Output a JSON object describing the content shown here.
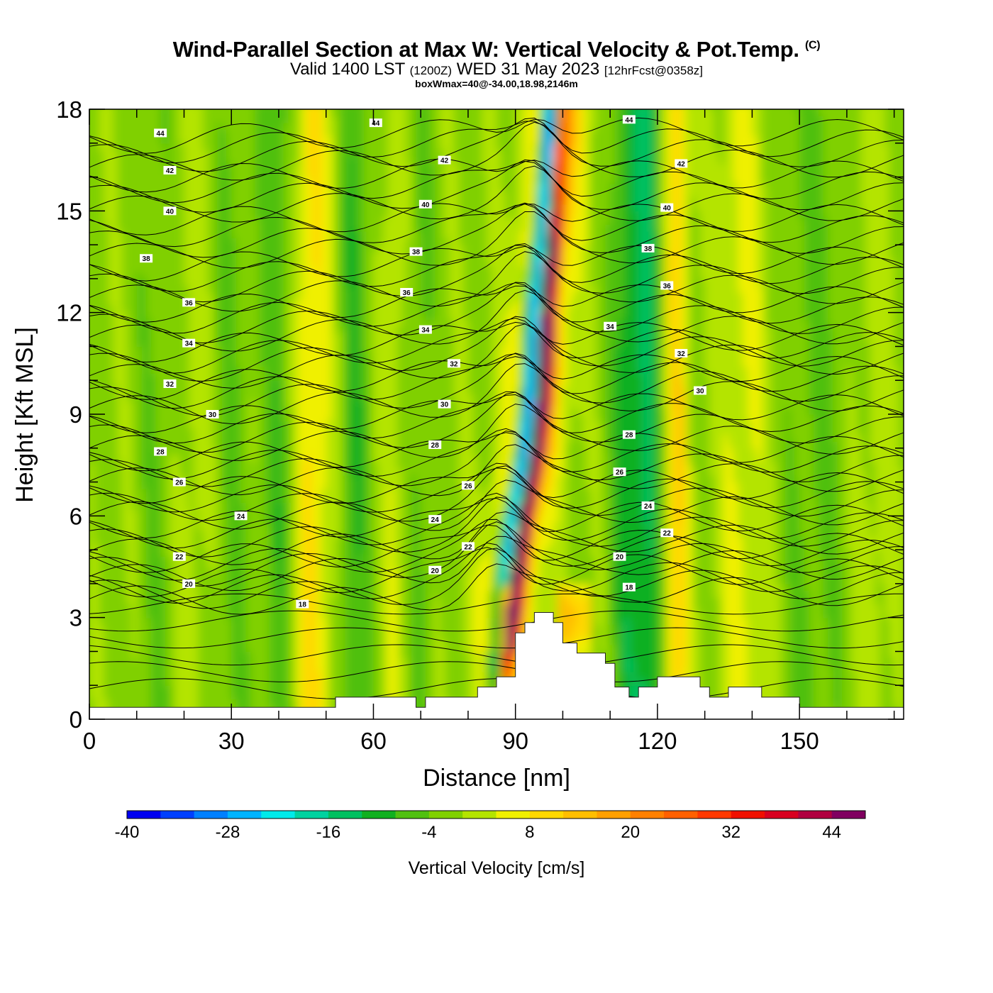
{
  "header": {
    "title": "Wind-Parallel Section at Max W: Vertical Velocity & Pot.Temp.",
    "copyright": "(C)",
    "valid_prefix": "Valid 1400 LST",
    "valid_z": "(1200Z)",
    "valid_day": "WED 31 May 2023",
    "forecast": "[12hrFcst@0358z]",
    "boxline": "boxWmax=40@-34.00,18.98,2146m"
  },
  "chart_data": {
    "type": "heatmap",
    "title": "Wind-Parallel Section at Max W: Vertical Velocity & Pot.Temp.",
    "xlabel": "Distance [nm]",
    "ylabel": "Height [Kft MSL]",
    "xlim": [
      0,
      172
    ],
    "ylim": [
      0,
      18
    ],
    "xticks": [
      0,
      30,
      60,
      90,
      120,
      150
    ],
    "yticks": [
      0,
      3,
      6,
      9,
      12,
      15,
      18
    ],
    "colorbar": {
      "title": "Vertical Velocity [cm/s]",
      "levels": [
        -40,
        -36,
        -32,
        -28,
        -24,
        -20,
        -16,
        -12,
        -8,
        -4,
        0,
        4,
        8,
        12,
        16,
        20,
        24,
        28,
        32,
        36,
        40,
        44,
        48
      ],
      "tick_labels": [
        -40,
        -28,
        -16,
        -4,
        8,
        20,
        32,
        44
      ],
      "colors": [
        "#0000f0",
        "#0040ff",
        "#0080ff",
        "#00b4ff",
        "#00eaea",
        "#00d2a0",
        "#00c060",
        "#10b020",
        "#50c010",
        "#80d000",
        "#b4e400",
        "#f0f000",
        "#ffd800",
        "#ffbe00",
        "#ffa000",
        "#ff8000",
        "#ff6000",
        "#ff3800",
        "#f01000",
        "#d80020",
        "#b00040",
        "#800060"
      ]
    },
    "theta_labels": [
      {
        "x": 15,
        "y": 17.3,
        "v": "44"
      },
      {
        "x": 60.5,
        "y": 17.6,
        "v": "44"
      },
      {
        "x": 114,
        "y": 17.7,
        "v": "44"
      },
      {
        "x": 17,
        "y": 16.2,
        "v": "42"
      },
      {
        "x": 75,
        "y": 16.5,
        "v": "42"
      },
      {
        "x": 125,
        "y": 16.4,
        "v": "42"
      },
      {
        "x": 17,
        "y": 15.0,
        "v": "40"
      },
      {
        "x": 71,
        "y": 15.2,
        "v": "40"
      },
      {
        "x": 122,
        "y": 15.1,
        "v": "40"
      },
      {
        "x": 12,
        "y": 13.6,
        "v": "38"
      },
      {
        "x": 69,
        "y": 13.8,
        "v": "38"
      },
      {
        "x": 118,
        "y": 13.9,
        "v": "38"
      },
      {
        "x": 21,
        "y": 12.3,
        "v": "36"
      },
      {
        "x": 67,
        "y": 12.6,
        "v": "36"
      },
      {
        "x": 122,
        "y": 12.8,
        "v": "36"
      },
      {
        "x": 21,
        "y": 11.1,
        "v": "34"
      },
      {
        "x": 71,
        "y": 11.5,
        "v": "34"
      },
      {
        "x": 110,
        "y": 11.6,
        "v": "34"
      },
      {
        "x": 17,
        "y": 9.9,
        "v": "32"
      },
      {
        "x": 77,
        "y": 10.5,
        "v": "32"
      },
      {
        "x": 125,
        "y": 10.8,
        "v": "32"
      },
      {
        "x": 26,
        "y": 9.0,
        "v": "30"
      },
      {
        "x": 75,
        "y": 9.3,
        "v": "30"
      },
      {
        "x": 129,
        "y": 9.7,
        "v": "30"
      },
      {
        "x": 15,
        "y": 7.9,
        "v": "28"
      },
      {
        "x": 73,
        "y": 8.1,
        "v": "28"
      },
      {
        "x": 114,
        "y": 8.4,
        "v": "28"
      },
      {
        "x": 19,
        "y": 7.0,
        "v": "26"
      },
      {
        "x": 80,
        "y": 6.9,
        "v": "26"
      },
      {
        "x": 112,
        "y": 7.3,
        "v": "26"
      },
      {
        "x": 32,
        "y": 6.0,
        "v": "24"
      },
      {
        "x": 73,
        "y": 5.9,
        "v": "24"
      },
      {
        "x": 118,
        "y": 6.3,
        "v": "24"
      },
      {
        "x": 19,
        "y": 4.8,
        "v": "22"
      },
      {
        "x": 80,
        "y": 5.1,
        "v": "22"
      },
      {
        "x": 122,
        "y": 5.5,
        "v": "22"
      },
      {
        "x": 21,
        "y": 4.0,
        "v": "20"
      },
      {
        "x": 73,
        "y": 4.4,
        "v": "20"
      },
      {
        "x": 112,
        "y": 4.8,
        "v": "20"
      },
      {
        "x": 45,
        "y": 3.4,
        "v": "18"
      },
      {
        "x": 114,
        "y": 3.9,
        "v": "18"
      }
    ],
    "terrain": [
      [
        0,
        0.35
      ],
      [
        52,
        0.35
      ],
      [
        52,
        0.65
      ],
      [
        69,
        0.65
      ],
      [
        69,
        0.35
      ],
      [
        71,
        0.35
      ],
      [
        71,
        0.65
      ],
      [
        82,
        0.65
      ],
      [
        82,
        0.95
      ],
      [
        86,
        0.95
      ],
      [
        86,
        1.25
      ],
      [
        90,
        1.25
      ],
      [
        90,
        2.55
      ],
      [
        92,
        2.55
      ],
      [
        92,
        2.85
      ],
      [
        94,
        2.85
      ],
      [
        94,
        3.15
      ],
      [
        98,
        3.15
      ],
      [
        98,
        2.85
      ],
      [
        100,
        2.85
      ],
      [
        100,
        2.25
      ],
      [
        103,
        2.25
      ],
      [
        103,
        1.95
      ],
      [
        109,
        1.95
      ],
      [
        109,
        1.65
      ],
      [
        111,
        1.65
      ],
      [
        111,
        0.95
      ],
      [
        114,
        0.95
      ],
      [
        114,
        0.65
      ],
      [
        116,
        0.65
      ],
      [
        116,
        0.95
      ],
      [
        120,
        0.95
      ],
      [
        120,
        1.25
      ],
      [
        129,
        1.25
      ],
      [
        129,
        0.95
      ],
      [
        131,
        0.95
      ],
      [
        131,
        0.65
      ],
      [
        135,
        0.65
      ],
      [
        135,
        0.95
      ],
      [
        142,
        0.95
      ],
      [
        142,
        0.65
      ],
      [
        150,
        0.65
      ],
      [
        150,
        0.35
      ],
      [
        172,
        0.35
      ]
    ]
  }
}
